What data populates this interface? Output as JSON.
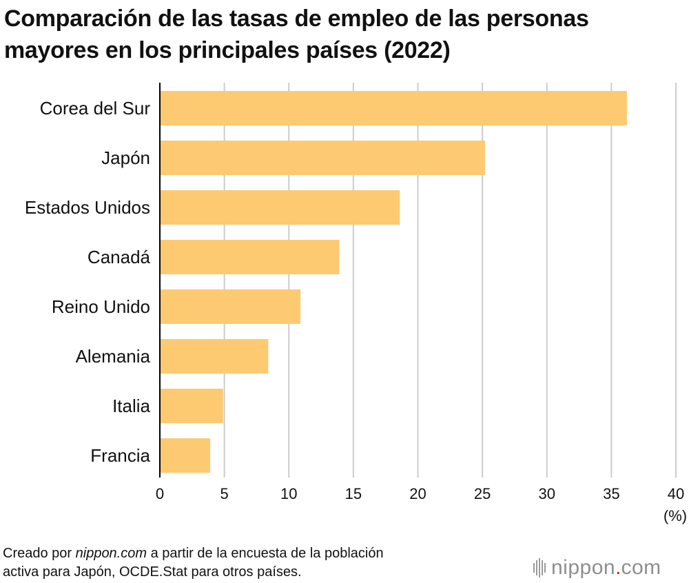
{
  "title": {
    "line1": "Comparación de las tasas de empleo de las personas",
    "line2": "mayores en los principales países (2022)"
  },
  "chart_data": {
    "type": "bar",
    "orientation": "horizontal",
    "title": "Comparación de las tasas de empleo de las personas mayores en los principales países (2022)",
    "categories": [
      "Corea del Sur",
      "Japón",
      "Estados Unidos",
      "Canadá",
      "Reino Unido",
      "Alemania",
      "Italia",
      "Francia"
    ],
    "values": [
      36.2,
      25.2,
      18.6,
      13.9,
      10.9,
      8.4,
      4.9,
      3.9
    ],
    "xticks": [
      "0",
      "5",
      "10",
      "15",
      "20",
      "25",
      "30",
      "35",
      "40"
    ],
    "xlim": [
      0,
      40
    ],
    "xlabel": "(%)",
    "ylabel": "",
    "grid": true,
    "bar_color": "#fdca72",
    "grid_color": "#cccccc",
    "axis_color": "#000000"
  },
  "footer": {
    "prefix": "Creado por ",
    "site": "nippon.com",
    "middle": " a partir de la encuesta de la población",
    "line2": "activa para Japón, OCDE.Stat para otros países."
  },
  "logo": {
    "name": "nippon",
    "dot": ".",
    "tld": "com"
  }
}
